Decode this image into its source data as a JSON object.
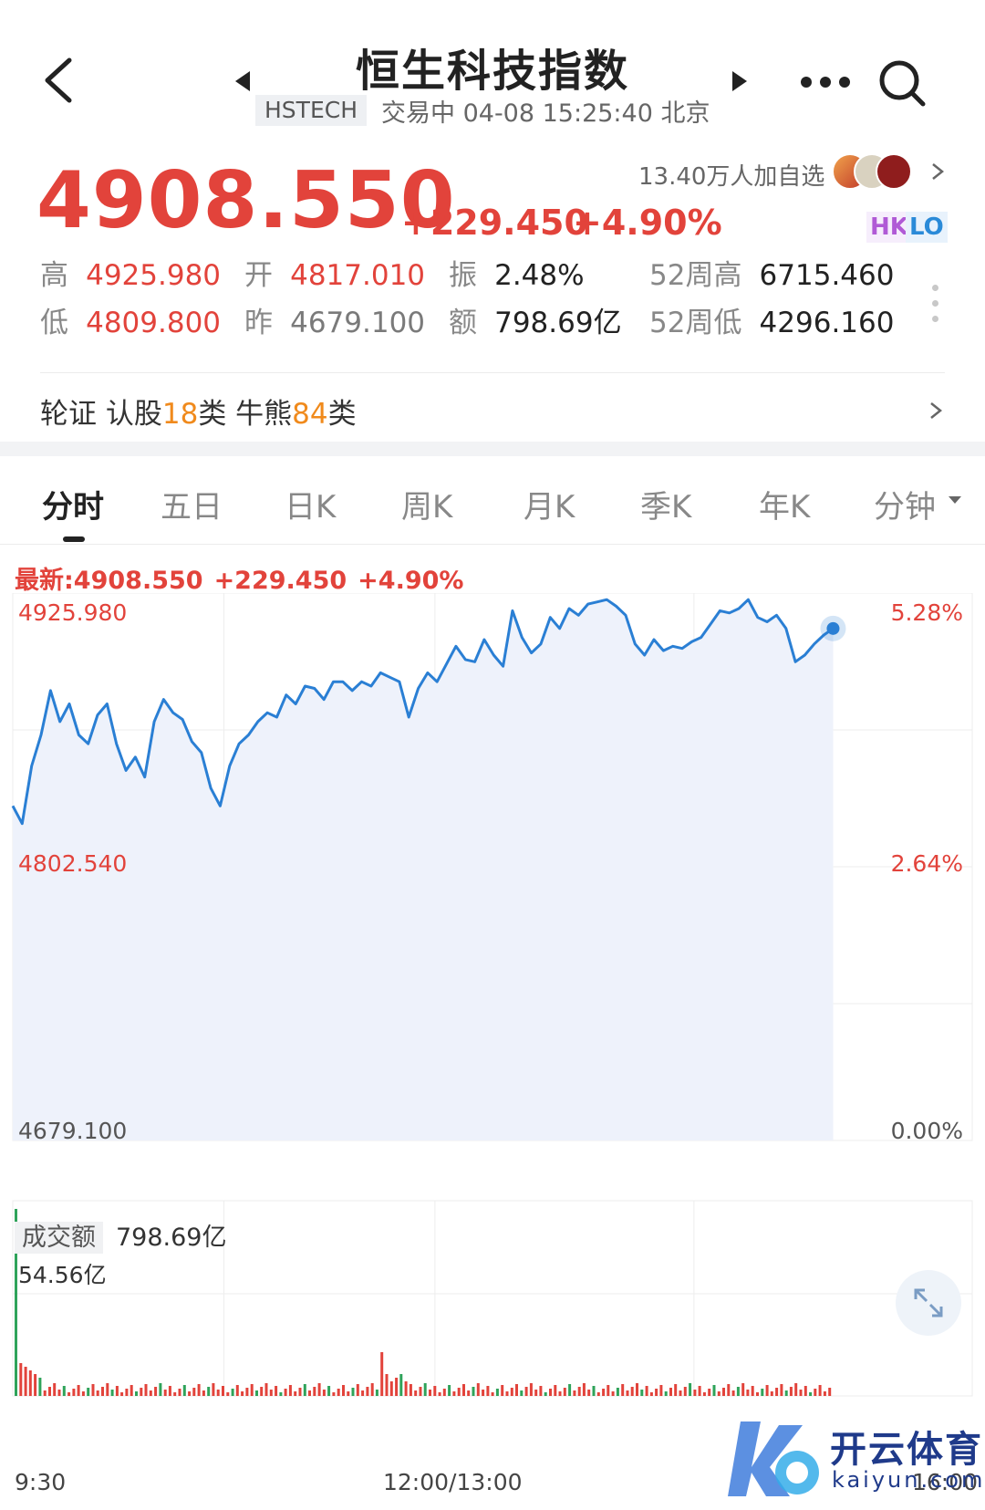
{
  "header": {
    "title": "恒生科技指数",
    "code": "HSTECH",
    "status": "交易中 04-08 15:25:40 北京"
  },
  "quote": {
    "price": "4908.550",
    "change_abs": "+229.450",
    "change_pct": "+4.90%",
    "followers": "13.40万人加自选",
    "badge_hk": "HK",
    "badge_lo": "LO"
  },
  "stats": {
    "high_label": "高",
    "high": "4925.980",
    "open_label": "开",
    "open": "4817.010",
    "amp_label": "振",
    "amp": "2.48%",
    "w52h_label": "52周高",
    "w52h": "6715.460",
    "low_label": "低",
    "low": "4809.800",
    "prev_label": "昨",
    "prev": "4679.100",
    "amount_label": "额",
    "amount": "798.69亿",
    "w52l_label": "52周低",
    "w52l": "4296.160"
  },
  "warrants": {
    "prefix": "轮证 认股",
    "call_count": "18",
    "mid": "类 牛熊",
    "cbbc_count": "84",
    "suffix": "类"
  },
  "tabs": [
    "分时",
    "五日",
    "日K",
    "周K",
    "月K",
    "季K",
    "年K",
    "分钟"
  ],
  "latest": {
    "label": "最新:4908.550",
    "change_abs": "+229.450",
    "change_pct": "+4.90%"
  },
  "axis": {
    "price_top": "4925.980",
    "price_mid": "4802.540",
    "price_bottom": "4679.100",
    "pct_top": "5.28%",
    "pct_mid": "2.64%",
    "pct_bottom": "0.00%"
  },
  "volume": {
    "tag": "成交额",
    "total": "798.69亿",
    "max": "54.56亿"
  },
  "time_axis": {
    "start": "9:30",
    "mid": "12:00/13:00",
    "end": "16:00"
  },
  "watermark": {
    "cn": "开云体育",
    "en": "kaiyun.com"
  },
  "colors": {
    "up": "#e2433b",
    "line": "#2a7fd4",
    "fill": "#eef2fb",
    "accent_orange": "#f08a1c"
  },
  "chart_data": {
    "type": "line",
    "title": "",
    "xlabel": "",
    "ylabel": "",
    "x_range": [
      "9:30",
      "16:00"
    ],
    "ylim": [
      4679.1,
      4925.98
    ],
    "grid": true,
    "series": [
      {
        "values": [
          4830,
          4822,
          4848,
          4862,
          4882,
          4868,
          4876,
          4862,
          4858,
          4871,
          4876,
          4858,
          4846,
          4852,
          4843,
          4868,
          4878,
          4872,
          4869,
          4859,
          4854,
          4838,
          4830,
          4848,
          4858,
          4862,
          4868,
          4872,
          4870,
          4880,
          4876,
          4884,
          4883,
          4878,
          4886,
          4886,
          4882,
          4886,
          4884,
          4890,
          4888,
          4886,
          4870,
          4883,
          4890,
          4886,
          4894,
          4902,
          4896,
          4895,
          4905,
          4898,
          4893,
          4918,
          4906,
          4899,
          4903,
          4915,
          4910,
          4919,
          4916,
          4921,
          4922,
          4923,
          4920,
          4916,
          4903,
          4898,
          4905,
          4900,
          4902,
          4901,
          4904,
          4906,
          4912,
          4918,
          4917,
          4919,
          4923,
          4915,
          4913,
          4916,
          4910,
          4895,
          4898,
          4903,
          4907,
          4910
        ]
      }
    ],
    "volume_unit": "亿",
    "volume_max": 54.56
  }
}
